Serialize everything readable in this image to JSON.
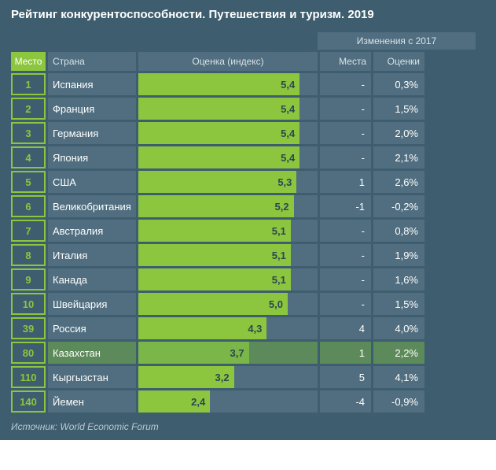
{
  "title": "Рейтинг конкурентоспособности. Путешествия и туризм. 2019",
  "source": "Источник: World Economic Forum",
  "change_header": "Изменения с 2017",
  "headers": {
    "rank": "Место",
    "country": "Страна",
    "score": "Оценка (индекс)",
    "rank_change": "Места",
    "score_change": "Оценки"
  },
  "chart": {
    "type": "bar-table",
    "max_score": 6.0,
    "bar_color": "#8cc63f",
    "bar_track_color": "#506e7f",
    "highlight_bg": "#5d8a5a",
    "background": "#3e5d6e",
    "rank_border_color": "#8cc63f",
    "text_color": "#ffffff",
    "value_text_color": "#2d4654"
  },
  "rows": [
    {
      "rank": "1",
      "country": "Испания",
      "score": 5.4,
      "score_label": "5,4",
      "rank_change": "-",
      "score_change": "0,3%",
      "highlight": false
    },
    {
      "rank": "2",
      "country": "Франция",
      "score": 5.4,
      "score_label": "5,4",
      "rank_change": "-",
      "score_change": "1,5%",
      "highlight": false
    },
    {
      "rank": "3",
      "country": "Германия",
      "score": 5.4,
      "score_label": "5,4",
      "rank_change": "-",
      "score_change": "2,0%",
      "highlight": false
    },
    {
      "rank": "4",
      "country": "Япония",
      "score": 5.4,
      "score_label": "5,4",
      "rank_change": "-",
      "score_change": "2,1%",
      "highlight": false
    },
    {
      "rank": "5",
      "country": "США",
      "score": 5.3,
      "score_label": "5,3",
      "rank_change": "1",
      "score_change": "2,6%",
      "highlight": false
    },
    {
      "rank": "6",
      "country": "Великобритания",
      "score": 5.2,
      "score_label": "5,2",
      "rank_change": "-1",
      "score_change": "-0,2%",
      "highlight": false
    },
    {
      "rank": "7",
      "country": "Австралия",
      "score": 5.1,
      "score_label": "5,1",
      "rank_change": "-",
      "score_change": "0,8%",
      "highlight": false
    },
    {
      "rank": "8",
      "country": "Италия",
      "score": 5.1,
      "score_label": "5,1",
      "rank_change": "-",
      "score_change": "1,9%",
      "highlight": false
    },
    {
      "rank": "9",
      "country": "Канада",
      "score": 5.1,
      "score_label": "5,1",
      "rank_change": "-",
      "score_change": "1,6%",
      "highlight": false
    },
    {
      "rank": "10",
      "country": "Швейцария",
      "score": 5.0,
      "score_label": "5,0",
      "rank_change": "-",
      "score_change": "1,5%",
      "highlight": false
    },
    {
      "rank": "39",
      "country": "Россия",
      "score": 4.3,
      "score_label": "4,3",
      "rank_change": "4",
      "score_change": "4,0%",
      "highlight": false
    },
    {
      "rank": "80",
      "country": "Казахстан",
      "score": 3.7,
      "score_label": "3,7",
      "rank_change": "1",
      "score_change": "2,2%",
      "highlight": true
    },
    {
      "rank": "110",
      "country": "Кыргызстан",
      "score": 3.2,
      "score_label": "3,2",
      "rank_change": "5",
      "score_change": "4,1%",
      "highlight": false
    },
    {
      "rank": "140",
      "country": "Йемен",
      "score": 2.4,
      "score_label": "2,4",
      "rank_change": "-4",
      "score_change": "-0,9%",
      "highlight": false
    }
  ]
}
